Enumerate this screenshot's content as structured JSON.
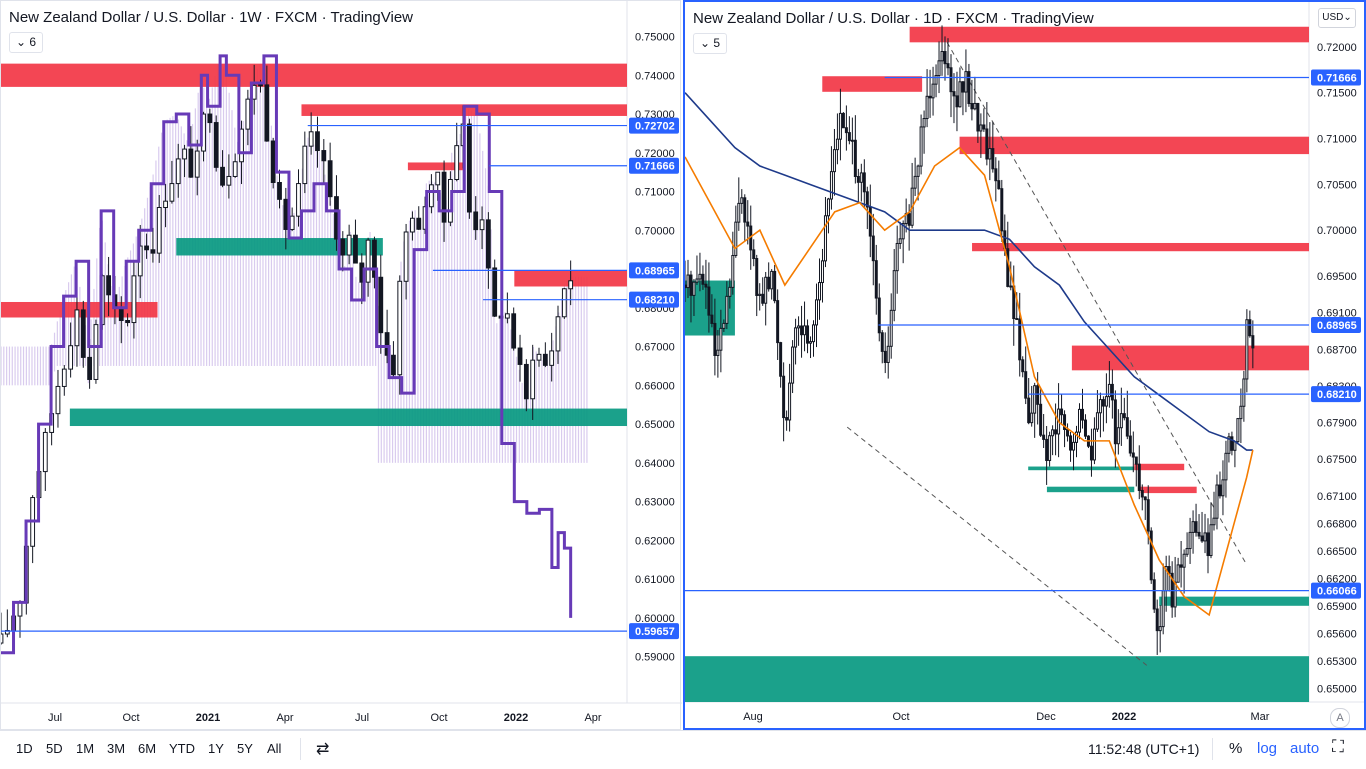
{
  "colors": {
    "zone_red": "#f23645",
    "zone_green": "#089981",
    "hline": "#2962ff",
    "cloud": "#c9b6e8",
    "cloud_line": "#673ab7",
    "ema_fast": "#f57c00",
    "ema_slow": "#1e3a8a"
  },
  "left_chart": {
    "title": "New Zealand Dollar / U.S. Dollar · 1W · FXCM · TradingView",
    "interval_button": "6",
    "price_ticks": [
      "0.75000",
      "0.74000",
      "0.73000",
      "0.72000",
      "0.71000",
      "0.70000",
      "0.69000",
      "0.68000",
      "0.67000",
      "0.66000",
      "0.65000",
      "0.64000",
      "0.63000",
      "0.62000",
      "0.61000",
      "0.60000",
      "0.59000"
    ],
    "time_ticks": [
      "Jul",
      "Oct",
      "2021",
      "Apr",
      "Jul",
      "Oct",
      "2022",
      "Apr"
    ],
    "level_labels": [
      "0.72702",
      "0.71666",
      "0.68965",
      "0.68210",
      "0.59657"
    ]
  },
  "right_chart": {
    "title": "New Zealand Dollar / U.S. Dollar · 1D · FXCM · TradingView",
    "interval_button": "5",
    "currency": "USD",
    "price_ticks": [
      "0.72000",
      "0.71500",
      "0.71000",
      "0.70500",
      "0.70000",
      "0.69500",
      "0.69100",
      "0.68700",
      "0.68300",
      "0.67900",
      "0.67500",
      "0.67100",
      "0.66800",
      "0.66500",
      "0.66200",
      "0.65900",
      "0.65600",
      "0.65300",
      "0.65000"
    ],
    "time_ticks": [
      "Aug",
      "Oct",
      "Dec",
      "2022",
      "Mar"
    ],
    "level_labels": [
      "0.71666",
      "0.68965",
      "0.68210",
      "0.66066"
    ],
    "auto_scale": "A"
  },
  "bottom_bar": {
    "ranges": [
      "1D",
      "5D",
      "1M",
      "3M",
      "6M",
      "YTD",
      "1Y",
      "5Y",
      "All"
    ],
    "clock": "11:52:48 (UTC+1)",
    "percent": "%",
    "log": "log",
    "auto": "auto"
  },
  "chart_data": [
    {
      "type": "candlestick",
      "title": "New Zealand Dollar / U.S. Dollar · 1W · FXCM · TradingView",
      "x_range": [
        "2020-05",
        "2022-04"
      ],
      "ylim": [
        0.585,
        0.754
      ],
      "close_path": [
        [
          0,
          0.5935
        ],
        [
          0.03,
          0.605
        ],
        [
          0.05,
          0.632
        ],
        [
          0.07,
          0.645
        ],
        [
          0.09,
          0.66
        ],
        [
          0.11,
          0.672
        ],
        [
          0.12,
          0.68
        ],
        [
          0.14,
          0.66
        ],
        [
          0.16,
          0.688
        ],
        [
          0.18,
          0.678
        ],
        [
          0.2,
          0.675
        ],
        [
          0.22,
          0.698
        ],
        [
          0.24,
          0.695
        ],
        [
          0.26,
          0.709
        ],
        [
          0.29,
          0.72
        ],
        [
          0.31,
          0.714
        ],
        [
          0.33,
          0.735
        ],
        [
          0.35,
          0.712
        ],
        [
          0.37,
          0.718
        ],
        [
          0.39,
          0.73
        ],
        [
          0.41,
          0.742
        ],
        [
          0.43,
          0.72
        ],
        [
          0.45,
          0.7
        ],
        [
          0.47,
          0.705
        ],
        [
          0.49,
          0.724
        ],
        [
          0.51,
          0.72
        ],
        [
          0.53,
          0.705
        ],
        [
          0.55,
          0.69
        ],
        [
          0.56,
          0.702
        ],
        [
          0.57,
          0.682
        ],
        [
          0.59,
          0.7
        ],
        [
          0.61,
          0.67
        ],
        [
          0.63,
          0.664
        ],
        [
          0.64,
          0.695
        ],
        [
          0.66,
          0.707
        ],
        [
          0.67,
          0.695
        ],
        [
          0.68,
          0.713
        ],
        [
          0.7,
          0.712
        ],
        [
          0.71,
          0.7
        ],
        [
          0.72,
          0.72
        ],
        [
          0.74,
          0.727
        ],
        [
          0.75,
          0.7
        ],
        [
          0.77,
          0.705
        ],
        [
          0.78,
          0.685
        ],
        [
          0.79,
          0.675
        ],
        [
          0.8,
          0.68
        ],
        [
          0.81,
          0.678
        ],
        [
          0.82,
          0.67
        ],
        [
          0.84,
          0.655
        ],
        [
          0.85,
          0.67
        ],
        [
          0.87,
          0.665
        ],
        [
          0.88,
          0.67
        ],
        [
          0.89,
          0.678
        ],
        [
          0.9,
          0.686
        ],
        [
          0.91,
          0.688
        ]
      ],
      "ichimoku_line": [
        [
          0,
          0.591
        ],
        [
          0.02,
          0.604
        ],
        [
          0.04,
          0.625
        ],
        [
          0.06,
          0.65
        ],
        [
          0.08,
          0.67
        ],
        [
          0.1,
          0.683
        ],
        [
          0.12,
          0.692
        ],
        [
          0.14,
          0.67
        ],
        [
          0.16,
          0.705
        ],
        [
          0.18,
          0.68
        ],
        [
          0.2,
          0.692
        ],
        [
          0.22,
          0.7
        ],
        [
          0.24,
          0.712
        ],
        [
          0.26,
          0.728
        ],
        [
          0.28,
          0.73
        ],
        [
          0.3,
          0.722
        ],
        [
          0.32,
          0.74
        ],
        [
          0.33,
          0.732
        ],
        [
          0.35,
          0.745
        ],
        [
          0.36,
          0.74
        ],
        [
          0.38,
          0.72
        ],
        [
          0.4,
          0.738
        ],
        [
          0.42,
          0.745
        ],
        [
          0.44,
          0.715
        ],
        [
          0.46,
          0.698
        ],
        [
          0.48,
          0.705
        ],
        [
          0.5,
          0.712
        ],
        [
          0.52,
          0.705
        ],
        [
          0.54,
          0.69
        ],
        [
          0.56,
          0.682
        ],
        [
          0.58,
          0.69
        ],
        [
          0.6,
          0.67
        ],
        [
          0.62,
          0.662
        ],
        [
          0.64,
          0.658
        ],
        [
          0.66,
          0.695
        ],
        [
          0.68,
          0.71
        ],
        [
          0.7,
          0.705
        ],
        [
          0.72,
          0.71
        ],
        [
          0.74,
          0.732
        ],
        [
          0.76,
          0.73
        ],
        [
          0.78,
          0.71
        ],
        [
          0.8,
          0.645
        ],
        [
          0.82,
          0.63
        ],
        [
          0.84,
          0.627
        ],
        [
          0.86,
          0.628
        ],
        [
          0.88,
          0.613
        ],
        [
          0.89,
          0.622
        ],
        [
          0.9,
          0.618
        ],
        [
          0.91,
          0.6
        ]
      ],
      "zones": [
        {
          "color": "red",
          "x": [
            0,
            1
          ],
          "y": [
            0.737,
            0.743
          ]
        },
        {
          "color": "red",
          "x": [
            0.48,
            1
          ],
          "y": [
            0.7295,
            0.7325
          ]
        },
        {
          "color": "red",
          "x": [
            0.65,
            0.74
          ],
          "y": [
            0.7155,
            0.7175
          ]
        },
        {
          "color": "green",
          "x": [
            0.28,
            0.61
          ],
          "y": [
            0.6935,
            0.698
          ]
        },
        {
          "color": "red",
          "x": [
            0,
            0.25
          ],
          "y": [
            0.6775,
            0.6815
          ]
        },
        {
          "color": "red",
          "x": [
            0.82,
            1
          ],
          "y": [
            0.6855,
            0.6895
          ]
        },
        {
          "color": "green",
          "x": [
            0.11,
            1
          ],
          "y": [
            0.6495,
            0.654
          ]
        }
      ],
      "levels": [
        {
          "label": "0.72702",
          "value": 0.72702,
          "x_from": 0.49
        },
        {
          "label": "0.71666",
          "value": 0.71666,
          "x_from": 0.78
        },
        {
          "label": "0.68965",
          "value": 0.68965,
          "x_from": 0.69
        },
        {
          "label": "0.68210",
          "value": 0.6821,
          "x_from": 0.77
        },
        {
          "label": "0.59657",
          "value": 0.59657,
          "x_from": 0
        }
      ]
    },
    {
      "type": "candlestick",
      "title": "New Zealand Dollar / U.S. Dollar · 1D · FXCM · TradingView",
      "x_range": [
        "2021-06",
        "2022-03"
      ],
      "ylim": [
        0.6485,
        0.7225
      ],
      "close_path": [
        [
          0,
          0.694
        ],
        [
          0.03,
          0.695
        ],
        [
          0.05,
          0.685
        ],
        [
          0.07,
          0.693
        ],
        [
          0.09,
          0.705
        ],
        [
          0.1,
          0.7
        ],
        [
          0.12,
          0.692
        ],
        [
          0.14,
          0.695
        ],
        [
          0.16,
          0.679
        ],
        [
          0.18,
          0.69
        ],
        [
          0.2,
          0.688
        ],
        [
          0.22,
          0.697
        ],
        [
          0.24,
          0.71
        ],
        [
          0.25,
          0.712
        ],
        [
          0.27,
          0.708
        ],
        [
          0.29,
          0.703
        ],
        [
          0.3,
          0.697
        ],
        [
          0.31,
          0.69
        ],
        [
          0.32,
          0.684
        ],
        [
          0.34,
          0.698
        ],
        [
          0.36,
          0.702
        ],
        [
          0.37,
          0.705
        ],
        [
          0.38,
          0.712
        ],
        [
          0.4,
          0.718
        ],
        [
          0.42,
          0.72
        ],
        [
          0.43,
          0.714
        ],
        [
          0.45,
          0.716
        ],
        [
          0.46,
          0.714
        ],
        [
          0.48,
          0.71
        ],
        [
          0.5,
          0.706
        ],
        [
          0.51,
          0.698
        ],
        [
          0.53,
          0.69
        ],
        [
          0.55,
          0.68
        ],
        [
          0.56,
          0.682
        ],
        [
          0.58,
          0.675
        ],
        [
          0.6,
          0.68
        ],
        [
          0.62,
          0.675
        ],
        [
          0.63,
          0.68
        ],
        [
          0.65,
          0.676
        ],
        [
          0.67,
          0.682
        ],
        [
          0.68,
          0.684
        ],
        [
          0.69,
          0.676
        ],
        [
          0.7,
          0.68
        ],
        [
          0.72,
          0.675
        ],
        [
          0.74,
          0.67
        ],
        [
          0.75,
          0.66
        ],
        [
          0.76,
          0.655
        ],
        [
          0.77,
          0.664
        ],
        [
          0.78,
          0.66
        ],
        [
          0.79,
          0.662
        ],
        [
          0.8,
          0.665
        ],
        [
          0.82,
          0.668
        ],
        [
          0.84,
          0.665
        ],
        [
          0.85,
          0.67
        ],
        [
          0.86,
          0.673
        ],
        [
          0.87,
          0.676
        ],
        [
          0.88,
          0.676
        ],
        [
          0.89,
          0.68
        ],
        [
          0.9,
          0.689
        ],
        [
          0.91,
          0.688
        ]
      ],
      "ema_fast": [
        [
          0,
          0.708
        ],
        [
          0.04,
          0.703
        ],
        [
          0.08,
          0.698
        ],
        [
          0.12,
          0.7
        ],
        [
          0.16,
          0.694
        ],
        [
          0.2,
          0.698
        ],
        [
          0.24,
          0.702
        ],
        [
          0.28,
          0.703
        ],
        [
          0.32,
          0.7
        ],
        [
          0.36,
          0.702
        ],
        [
          0.4,
          0.707
        ],
        [
          0.44,
          0.709
        ],
        [
          0.48,
          0.706
        ],
        [
          0.52,
          0.696
        ],
        [
          0.56,
          0.684
        ],
        [
          0.6,
          0.679
        ],
        [
          0.64,
          0.677
        ],
        [
          0.68,
          0.677
        ],
        [
          0.72,
          0.67
        ],
        [
          0.76,
          0.664
        ],
        [
          0.8,
          0.66
        ],
        [
          0.84,
          0.658
        ],
        [
          0.88,
          0.668
        ],
        [
          0.9,
          0.673
        ],
        [
          0.91,
          0.676
        ]
      ],
      "ema_slow": [
        [
          0,
          0.715
        ],
        [
          0.04,
          0.712
        ],
        [
          0.08,
          0.709
        ],
        [
          0.12,
          0.707
        ],
        [
          0.16,
          0.706
        ],
        [
          0.2,
          0.705
        ],
        [
          0.24,
          0.704
        ],
        [
          0.28,
          0.703
        ],
        [
          0.32,
          0.702
        ],
        [
          0.36,
          0.7
        ],
        [
          0.4,
          0.7
        ],
        [
          0.44,
          0.7
        ],
        [
          0.48,
          0.7
        ],
        [
          0.52,
          0.699
        ],
        [
          0.56,
          0.696
        ],
        [
          0.6,
          0.694
        ],
        [
          0.64,
          0.69
        ],
        [
          0.68,
          0.687
        ],
        [
          0.72,
          0.684
        ],
        [
          0.76,
          0.682
        ],
        [
          0.8,
          0.68
        ],
        [
          0.84,
          0.678
        ],
        [
          0.88,
          0.677
        ],
        [
          0.9,
          0.676
        ],
        [
          0.91,
          0.676
        ]
      ],
      "channel_lines": [
        [
          [
            0.42,
            0.7205
          ],
          [
            0.9,
            0.6635
          ]
        ],
        [
          [
            0.26,
            0.6785
          ],
          [
            0.74,
            0.6525
          ]
        ]
      ],
      "zones": [
        {
          "color": "red",
          "x": [
            0.36,
            1
          ],
          "y": [
            0.7205,
            0.7222
          ]
        },
        {
          "color": "red",
          "x": [
            0.22,
            0.38
          ],
          "y": [
            0.7151,
            0.7168
          ]
        },
        {
          "color": "red",
          "x": [
            0.44,
            1
          ],
          "y": [
            0.7083,
            0.7102
          ]
        },
        {
          "color": "red",
          "x": [
            0.46,
            1
          ],
          "y": [
            0.6977,
            0.6986
          ]
        },
        {
          "color": "red",
          "x": [
            0.62,
            1
          ],
          "y": [
            0.6847,
            0.6874
          ]
        },
        {
          "color": "green",
          "x": [
            0,
            0.08
          ],
          "y": [
            0.6885,
            0.6945
          ]
        },
        {
          "color": "green",
          "x": [
            0.55,
            0.72
          ],
          "y": [
            0.6738,
            0.6742
          ]
        },
        {
          "color": "red",
          "x": [
            0.72,
            0.8
          ],
          "y": [
            0.6738,
            0.6745
          ]
        },
        {
          "color": "green",
          "x": [
            0.58,
            0.72
          ],
          "y": [
            0.6714,
            0.672
          ]
        },
        {
          "color": "red",
          "x": [
            0.73,
            0.82
          ],
          "y": [
            0.6713,
            0.672
          ]
        },
        {
          "color": "green",
          "x": [
            0.76,
            1
          ],
          "y": [
            0.659,
            0.66
          ]
        },
        {
          "color": "green",
          "x": [
            0,
            1
          ],
          "y": [
            0.6485,
            0.6535
          ]
        }
      ],
      "levels": [
        {
          "label": "0.71666",
          "value": 0.71666,
          "x_from": 0.32
        },
        {
          "label": "0.68965",
          "value": 0.68965,
          "x_from": 0.31
        },
        {
          "label": "0.68210",
          "value": 0.6821,
          "x_from": 0.55
        },
        {
          "label": "0.66066",
          "value": 0.66066,
          "x_from": 0
        }
      ]
    }
  ]
}
